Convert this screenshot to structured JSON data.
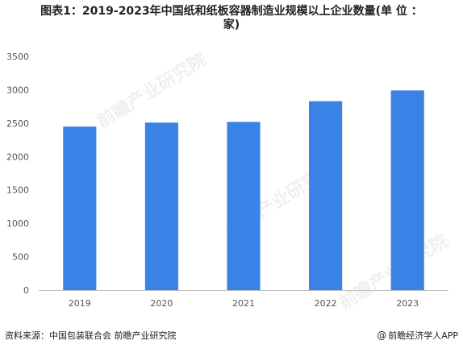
{
  "title_line1": "图表1：2019-2023年中国纸和纸板容器制造业规模以上企业数量(单 位 ：",
  "title_line2": "家)",
  "watermark_text": "前瞻产业研究院",
  "footer": {
    "source": "资料来源：中国包装联合会 前瞻产业研究院",
    "brand_icon": "at-sign-icon",
    "brand": "@前瞻经济学人APP"
  },
  "chart_data": {
    "type": "bar",
    "title": "图表1：2019-2023年中国纸和纸板容器制造业规模以上企业数量(单 位 ：家)",
    "categories": [
      "2019",
      "2020",
      "2021",
      "2022",
      "2023"
    ],
    "values": [
      2450,
      2510,
      2520,
      2830,
      2990
    ],
    "ylim": [
      0,
      3500
    ],
    "yticks": [
      0,
      500,
      1000,
      1500,
      2000,
      2500,
      3000,
      3500
    ],
    "grid": false,
    "legend": "none",
    "bar_color": "#3b82e6",
    "xlabel": "",
    "ylabel": ""
  }
}
